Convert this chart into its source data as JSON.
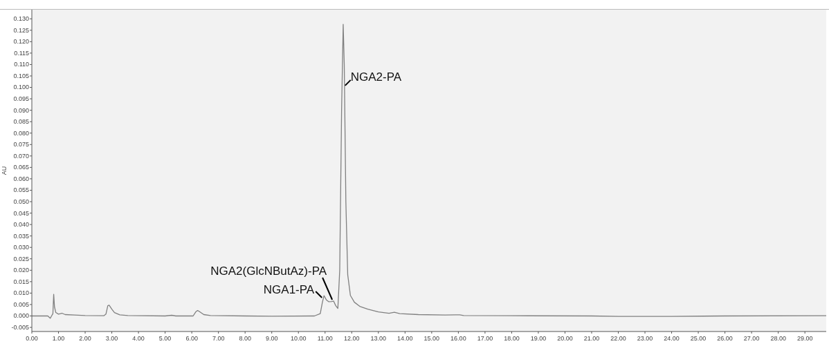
{
  "chart_data": {
    "type": "line",
    "ylabel": "AU",
    "x": [
      0,
      0.6,
      0.69,
      0.74,
      0.79,
      0.82,
      0.85,
      0.9,
      1.0,
      1.13,
      1.25,
      1.6,
      2.0,
      2.7,
      2.78,
      2.85,
      2.9,
      3.0,
      3.1,
      3.3,
      3.6,
      5.0,
      5.25,
      5.4,
      6.05,
      6.15,
      6.22,
      6.3,
      6.45,
      6.7,
      8,
      9,
      10.6,
      10.82,
      10.9,
      10.96,
      11.05,
      11.14,
      11.25,
      11.32,
      11.4,
      11.48,
      11.55,
      11.62,
      11.68,
      11.72,
      11.78,
      11.85,
      11.95,
      12.1,
      12.3,
      12.6,
      13.0,
      13.4,
      13.6,
      13.8,
      14.5,
      15.5,
      15.9,
      16.05,
      16.2,
      18,
      21,
      22,
      24,
      26,
      29.8
    ],
    "series": [
      {
        "color": "#808080",
        "values": [
          0,
          0,
          -0.001,
          0,
          0.001,
          0.0095,
          0.004,
          0.0015,
          0.0008,
          0.0012,
          0.0006,
          0.0004,
          0.0002,
          0.0001,
          0.0008,
          0.0045,
          0.0047,
          0.003,
          0.0015,
          0.0005,
          0.0002,
          0,
          0.0003,
          0,
          0,
          0.0018,
          0.0024,
          0.0018,
          0.0006,
          0.0002,
          0,
          -0.0001,
          0,
          0.001,
          0.006,
          0.0089,
          0.007,
          0.0062,
          0.0063,
          0.0065,
          0.0045,
          0.0033,
          0.02,
          0.09,
          0.1276,
          0.11,
          0.05,
          0.018,
          0.009,
          0.006,
          0.0042,
          0.003,
          0.0018,
          0.0012,
          0.0016,
          0.001,
          0.0006,
          0.0004,
          0.0005,
          0.0005,
          0.0002,
          0.0001,
          0,
          -0.0002,
          -0.0002,
          0,
          0.0001
        ]
      }
    ],
    "xlim": [
      0,
      29.8
    ],
    "ylim": [
      -0.0068,
      0.134
    ],
    "xticks": [
      {
        "value": 0,
        "label": "0.00"
      },
      {
        "value": 1,
        "label": "1.00"
      },
      {
        "value": 2,
        "label": "2.00"
      },
      {
        "value": 3,
        "label": "3.00"
      },
      {
        "value": 4,
        "label": "4.00"
      },
      {
        "value": 5,
        "label": "5.00"
      },
      {
        "value": 6,
        "label": "6.00"
      },
      {
        "value": 7,
        "label": "7.00"
      },
      {
        "value": 8,
        "label": "8.00"
      },
      {
        "value": 9,
        "label": "9.00"
      },
      {
        "value": 10,
        "label": "10.00"
      },
      {
        "value": 11,
        "label": "11.00"
      },
      {
        "value": 12,
        "label": "12.00"
      },
      {
        "value": 13,
        "label": "13.00"
      },
      {
        "value": 14,
        "label": "14.00"
      },
      {
        "value": 15,
        "label": "15.00"
      },
      {
        "value": 16,
        "label": "16.00"
      },
      {
        "value": 17,
        "label": "17.00"
      },
      {
        "value": 18,
        "label": "18.00"
      },
      {
        "value": 19,
        "label": "19.00"
      },
      {
        "value": 20,
        "label": "20.00"
      },
      {
        "value": 21,
        "label": "21.00"
      },
      {
        "value": 22,
        "label": "22.00"
      },
      {
        "value": 23,
        "label": "23.00"
      },
      {
        "value": 24,
        "label": "24.00"
      },
      {
        "value": 25,
        "label": "25.00"
      },
      {
        "value": 26,
        "label": "26.00"
      },
      {
        "value": 27,
        "label": "27.00"
      },
      {
        "value": 28,
        "label": "28.00"
      },
      {
        "value": 29,
        "label": "29.00"
      }
    ],
    "yticks": [
      {
        "value": -0.005,
        "label": "-0.005"
      },
      {
        "value": 0,
        "label": "0.000"
      },
      {
        "value": 0.005,
        "label": "0.005"
      },
      {
        "value": 0.01,
        "label": "0.010"
      },
      {
        "value": 0.015,
        "label": "0.015"
      },
      {
        "value": 0.02,
        "label": "0.020"
      },
      {
        "value": 0.025,
        "label": "0.025"
      },
      {
        "value": 0.03,
        "label": "0.030"
      },
      {
        "value": 0.035,
        "label": "0.035"
      },
      {
        "value": 0.04,
        "label": "0.040"
      },
      {
        "value": 0.045,
        "label": "0.045"
      },
      {
        "value": 0.05,
        "label": "0.050"
      },
      {
        "value": 0.055,
        "label": "0.055"
      },
      {
        "value": 0.06,
        "label": "0.060"
      },
      {
        "value": 0.065,
        "label": "0.065"
      },
      {
        "value": 0.07,
        "label": "0.070"
      },
      {
        "value": 0.075,
        "label": "0.075"
      },
      {
        "value": 0.08,
        "label": "0.080"
      },
      {
        "value": 0.085,
        "label": "0.085"
      },
      {
        "value": 0.09,
        "label": "0.090"
      },
      {
        "value": 0.095,
        "label": "0.095"
      },
      {
        "value": 0.1,
        "label": "0.100"
      },
      {
        "value": 0.105,
        "label": "0.105"
      },
      {
        "value": 0.11,
        "label": "0.110"
      },
      {
        "value": 0.115,
        "label": "0.115"
      },
      {
        "value": 0.12,
        "label": "0.120"
      },
      {
        "value": 0.125,
        "label": "0.125"
      },
      {
        "value": 0.13,
        "label": "0.130"
      }
    ],
    "annotations": [
      {
        "text": "NGA2-PA",
        "x": 11.7,
        "y": 0.102
      },
      {
        "text": "NGA2(GlcNButAz)-PA",
        "x": 11.32,
        "y": 0.0065
      },
      {
        "text": "NGA1-PA",
        "x": 10.96,
        "y": 0.0089
      }
    ],
    "grid": false,
    "line_style": "solid",
    "marker": "none"
  }
}
